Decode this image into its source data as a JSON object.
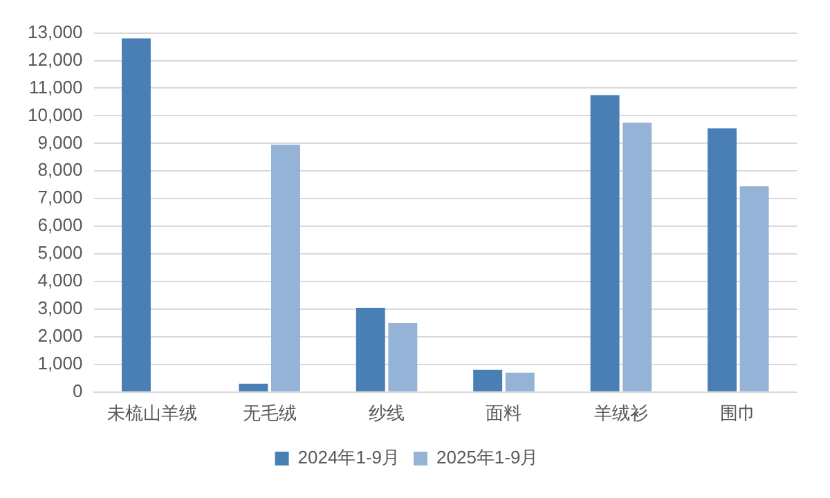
{
  "chart_data": {
    "type": "bar",
    "categories": [
      "未梳山羊绒",
      "无毛绒",
      "纱线",
      "面料",
      "羊绒衫",
      "围巾"
    ],
    "series": [
      {
        "name": "2024年1-9月",
        "color": "#4a7fb5",
        "values": [
          12800,
          300,
          3050,
          800,
          10750,
          9550
        ]
      },
      {
        "name": "2025年1-9月",
        "color": "#95b3d7",
        "values": [
          0,
          8950,
          2500,
          700,
          9750,
          7450
        ]
      }
    ],
    "ylim": [
      0,
      13000
    ],
    "yticks": [
      {
        "value": 0,
        "label": "0"
      },
      {
        "value": 1000,
        "label": "1,000"
      },
      {
        "value": 2000,
        "label": "2,000"
      },
      {
        "value": 3000,
        "label": "3,000"
      },
      {
        "value": 4000,
        "label": "4,000"
      },
      {
        "value": 5000,
        "label": "5,000"
      },
      {
        "value": 6000,
        "label": "6,000"
      },
      {
        "value": 7000,
        "label": "7,000"
      },
      {
        "value": 8000,
        "label": "8,000"
      },
      {
        "value": 9000,
        "label": "9,000"
      },
      {
        "value": 10000,
        "label": "10,000"
      },
      {
        "value": 11000,
        "label": "11,000"
      },
      {
        "value": 12000,
        "label": "12,000"
      },
      {
        "value": 13000,
        "label": "13,000"
      }
    ],
    "grid": "y",
    "legend": "bottom"
  }
}
